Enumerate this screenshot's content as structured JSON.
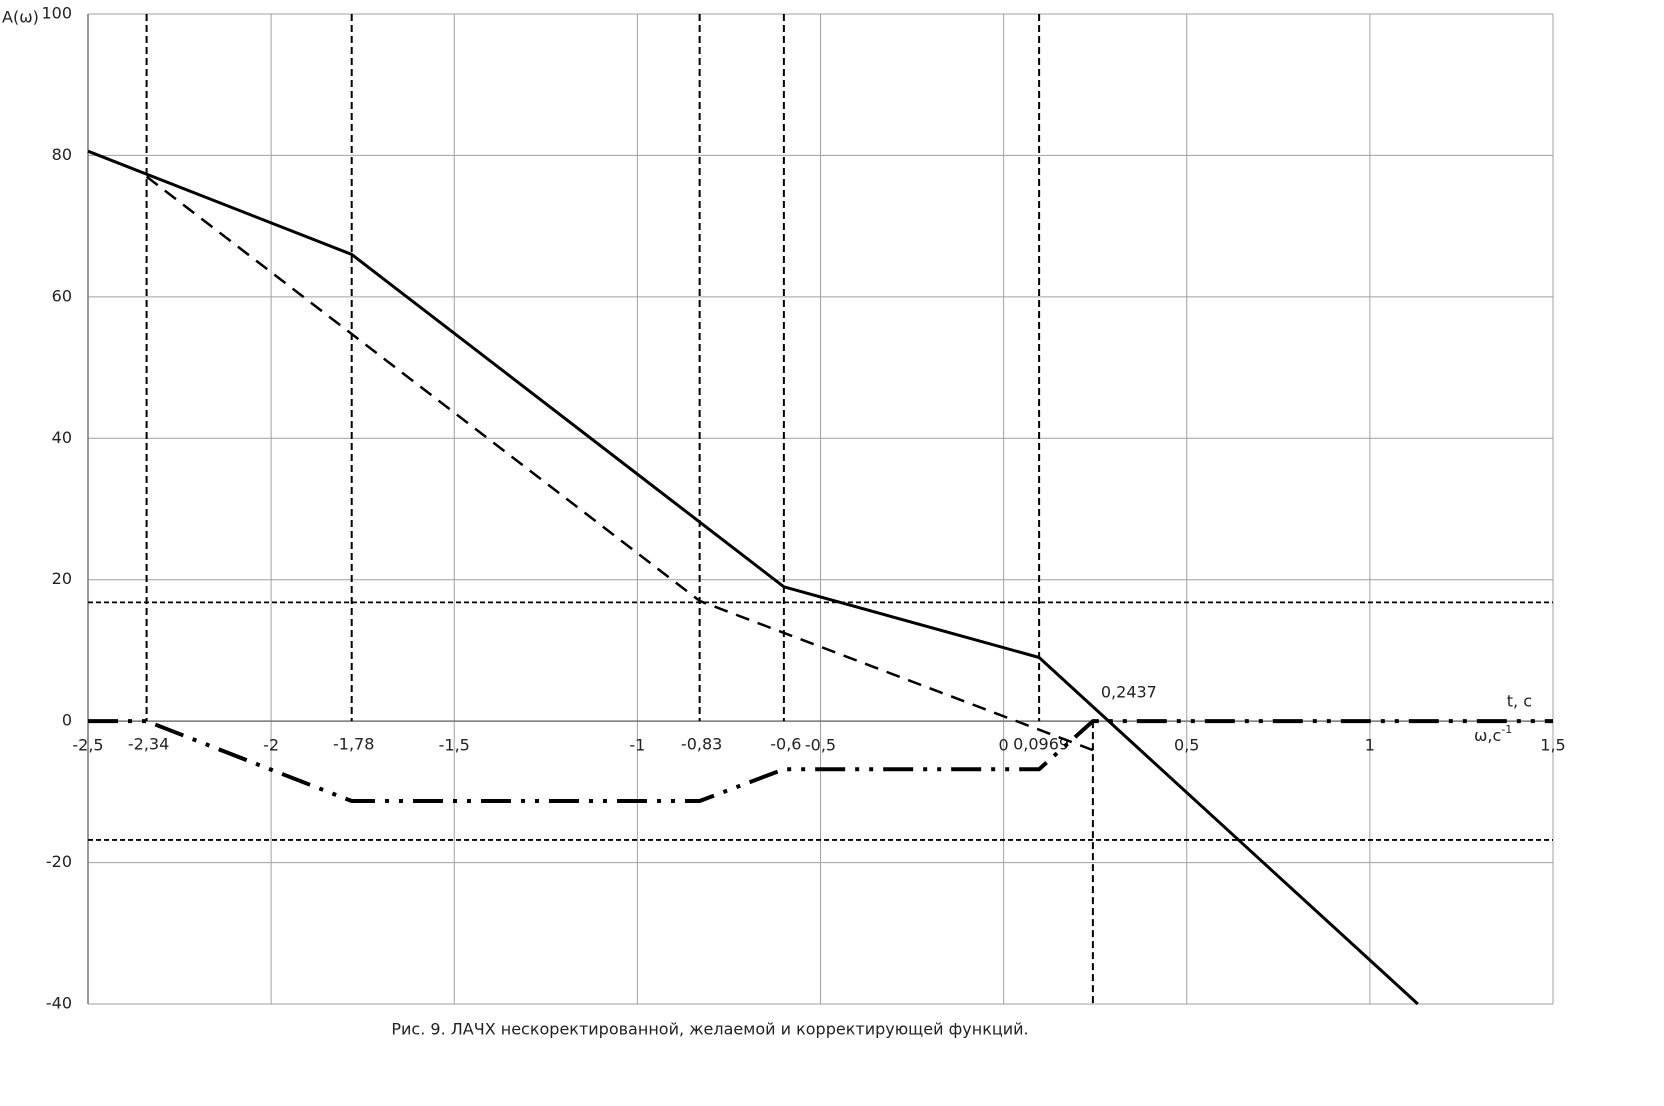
{
  "chart_data": {
    "type": "line",
    "title": "Рис. 9. ЛАЧХ нескоректированной, желаемой и корректирующей  функций.",
    "y_label": "A(ω)",
    "x_label_top": "t, c",
    "x_label": "ω,c",
    "x_label_sup": "-1",
    "xlim": [
      -2.5,
      1.5
    ],
    "ylim": [
      -40,
      100
    ],
    "xticks": [
      {
        "value": -2.5,
        "label": "-2,5"
      },
      -2,
      {
        "value": -1.5,
        "label": "-1,5"
      },
      -1,
      {
        "value": -0.5,
        "label": "-0,5"
      },
      0,
      {
        "value": 0.5,
        "label": "0,5"
      },
      1,
      {
        "value": 1.5,
        "label": "1,5"
      }
    ],
    "yticks": [
      -40,
      -20,
      0,
      20,
      40,
      60,
      80,
      100
    ],
    "grid": true,
    "marker_lines": [
      {
        "value": -2.34,
        "label": "-2,34",
        "span": "upper"
      },
      {
        "value": -1.78,
        "label": "-1,78",
        "span": "upper"
      },
      {
        "value": -0.83,
        "label": "-0,83",
        "span": "upper"
      },
      {
        "value": -0.6,
        "label": "-0,6",
        "span": "upper"
      },
      {
        "value": 0.0969,
        "label": "0,0969",
        "span": "upper"
      },
      {
        "value": 0.2437,
        "label": "0,2437",
        "span": "lower"
      }
    ],
    "hlines": [
      16.8,
      -16.8
    ],
    "series": [
      {
        "color": "#000000",
        "style": "solid",
        "x": [
          -2.5,
          -1.78,
          -0.6,
          0.0969,
          1.131
        ],
        "values": [
          80.6,
          66,
          19,
          9,
          -40
        ]
      },
      {
        "color": "#000000",
        "style": "dashed",
        "x": [
          -2.34,
          -0.83,
          0.2437
        ],
        "values": [
          77,
          17,
          -4.1
        ]
      },
      {
        "color": "#000000",
        "style": "dashdot",
        "x": [
          -2.5,
          -2.34,
          -1.78,
          -0.83,
          -0.6,
          0.0969,
          0.2437,
          1.5
        ],
        "values": [
          0,
          0,
          -11.3,
          -11.3,
          -6.8,
          -6.8,
          0,
          0
        ]
      }
    ]
  }
}
